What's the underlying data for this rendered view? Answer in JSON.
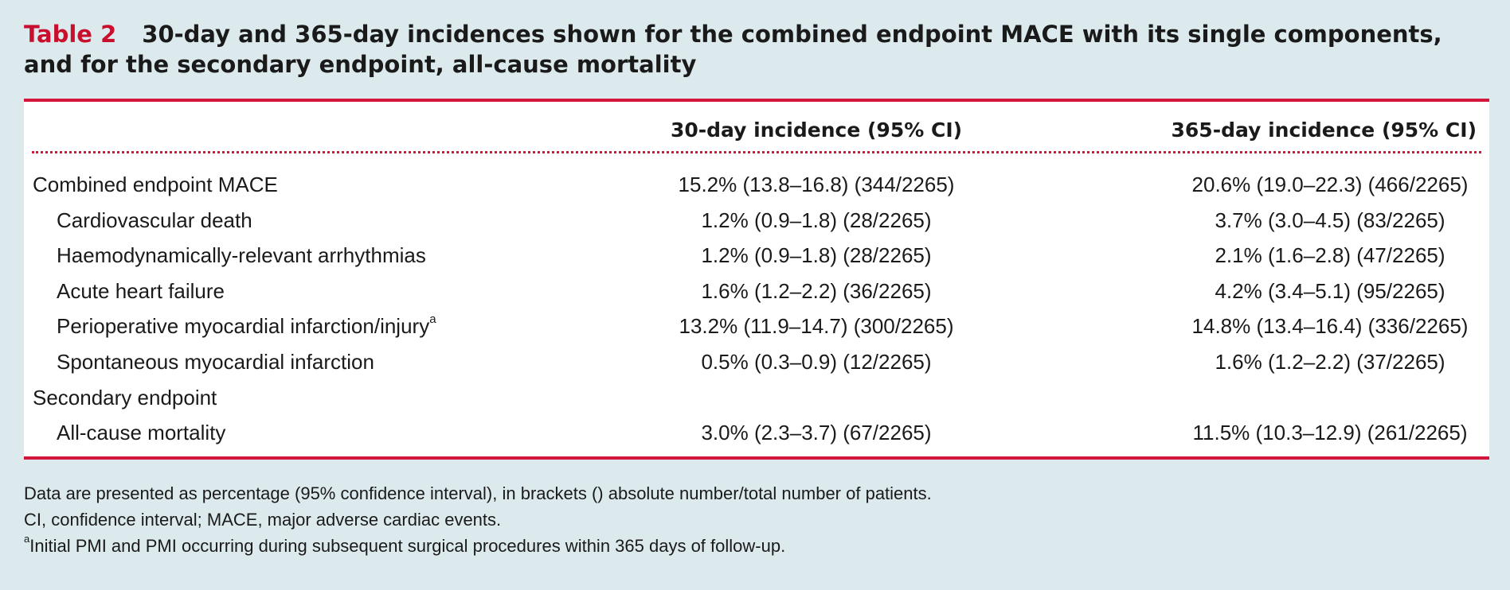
{
  "caption": {
    "label": "Table 2",
    "text": "30-day and 365-day incidences shown for the combined endpoint MACE with its single components, and for the secondary endpoint, all-cause mortality"
  },
  "table": {
    "headers": [
      "",
      "30-day incidence (95% CI)",
      "365-day incidence (95% CI)"
    ],
    "rows": [
      {
        "name": "Combined endpoint MACE",
        "sup": "",
        "v30": "15.2% (13.8–16.8) (344/2265)",
        "v365": "20.6% (19.0–22.3) (466/2265)"
      },
      {
        "name": "Cardiovascular death",
        "sup": "",
        "v30": "1.2% (0.9–1.8) (28/2265)",
        "v365": "3.7% (3.0–4.5) (83/2265)"
      },
      {
        "name": "Haemodynamically-relevant arrhythmias",
        "sup": "",
        "v30": "1.2% (0.9–1.8) (28/2265)",
        "v365": "2.1% (1.6–2.8) (47/2265)"
      },
      {
        "name": "Acute heart failure",
        "sup": "",
        "v30": "1.6% (1.2–2.2) (36/2265)",
        "v365": "4.2% (3.4–5.1) (95/2265)"
      },
      {
        "name": "Perioperative myocardial infarction/injury",
        "sup": "a",
        "v30": "13.2% (11.9–14.7) (300/2265)",
        "v365": "14.8% (13.4–16.4) (336/2265)"
      },
      {
        "name": "Spontaneous myocardial infarction",
        "sup": "",
        "v30": "0.5% (0.3–0.9) (12/2265)",
        "v365": "1.6% (1.2–2.2) (37/2265)"
      },
      {
        "name": "Secondary endpoint",
        "sup": "",
        "v30": "",
        "v365": ""
      },
      {
        "name": "All-cause mortality",
        "sup": "",
        "v30": "3.0% (2.3–3.7) (67/2265)",
        "v365": "11.5% (10.3–12.9) (261/2265)"
      }
    ]
  },
  "notes": {
    "line1": "Data are presented as percentage (95% confidence interval), in brackets () absolute number/total number of patients.",
    "line2": "CI, confidence interval; MACE, major adverse cardiac events.",
    "line3_sup": "a",
    "line3": "Initial PMI and PMI occurring during subsequent surgical procedures within 365 days of follow-up."
  }
}
